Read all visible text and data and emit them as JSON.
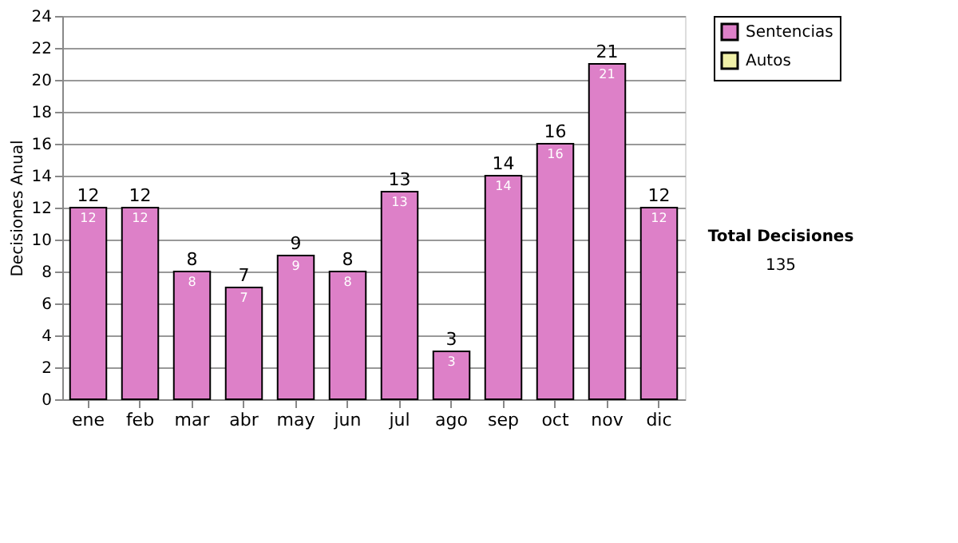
{
  "chart_data": {
    "type": "bar",
    "ylabel": "Decisiones Anual",
    "categories": [
      "ene",
      "feb",
      "mar",
      "abr",
      "may",
      "jun",
      "jul",
      "ago",
      "sep",
      "oct",
      "nov",
      "dic"
    ],
    "series": [
      {
        "name": "Sentencias",
        "color": "#dd80c8",
        "values": [
          12,
          12,
          8,
          7,
          9,
          8,
          13,
          3,
          14,
          16,
          21,
          12
        ]
      },
      {
        "name": "Autos",
        "color": "#f0f0a8",
        "values": [
          null,
          null,
          null,
          null,
          null,
          null,
          null,
          null,
          null,
          null,
          null,
          null
        ]
      }
    ],
    "stacked": true,
    "data_labels": true,
    "totals": [
      "12",
      "12",
      "8",
      "7",
      "9",
      "8",
      "13",
      "3",
      "14",
      "16",
      "21",
      "12"
    ],
    "ylim": [
      0,
      24
    ],
    "yticks": [
      0,
      2,
      4,
      6,
      8,
      10,
      12,
      14,
      16,
      18,
      20,
      22,
      24
    ],
    "grid": "y",
    "legend": "right",
    "annotations": [
      "Total Decisiones",
      "135"
    ]
  }
}
